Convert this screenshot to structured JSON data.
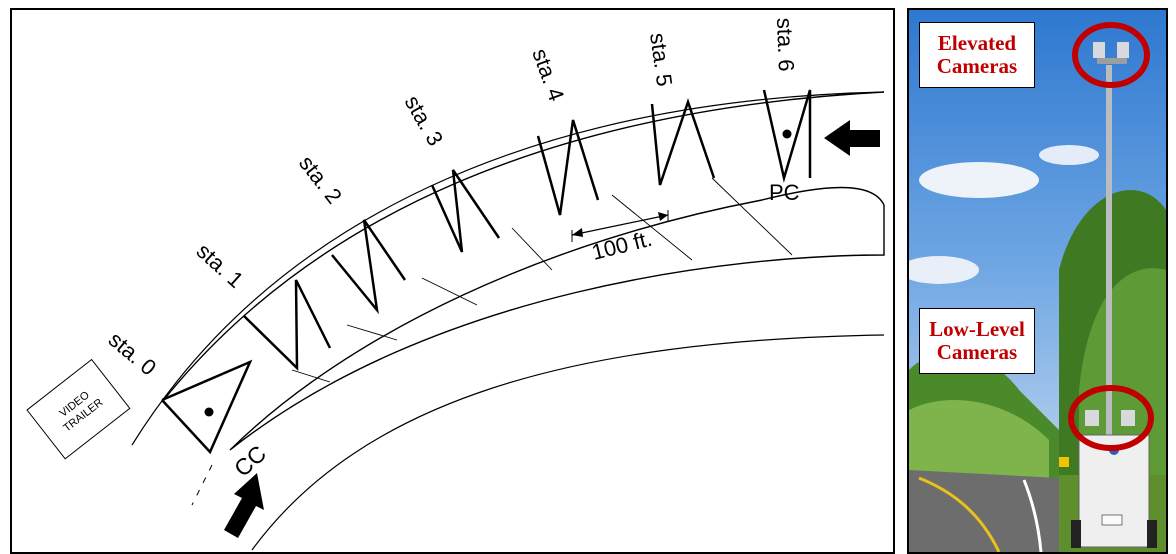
{
  "diagram": {
    "stations": [
      "sta. 0",
      "sta. 1",
      "sta. 2",
      "sta. 3",
      "sta. 4",
      "sta. 5",
      "sta. 6"
    ],
    "trailer_label_line1": "VIDEO",
    "trailer_label_line2": "TRAILER",
    "cc_label": "CC",
    "pc_label": "PC",
    "distance_label": "100 ft."
  },
  "photo": {
    "elevated_line1": "Elevated",
    "elevated_line2": "Cameras",
    "lowlevel_line1": "Low-Level",
    "lowlevel_line2": "Cameras",
    "callout_color": "#c00000"
  }
}
